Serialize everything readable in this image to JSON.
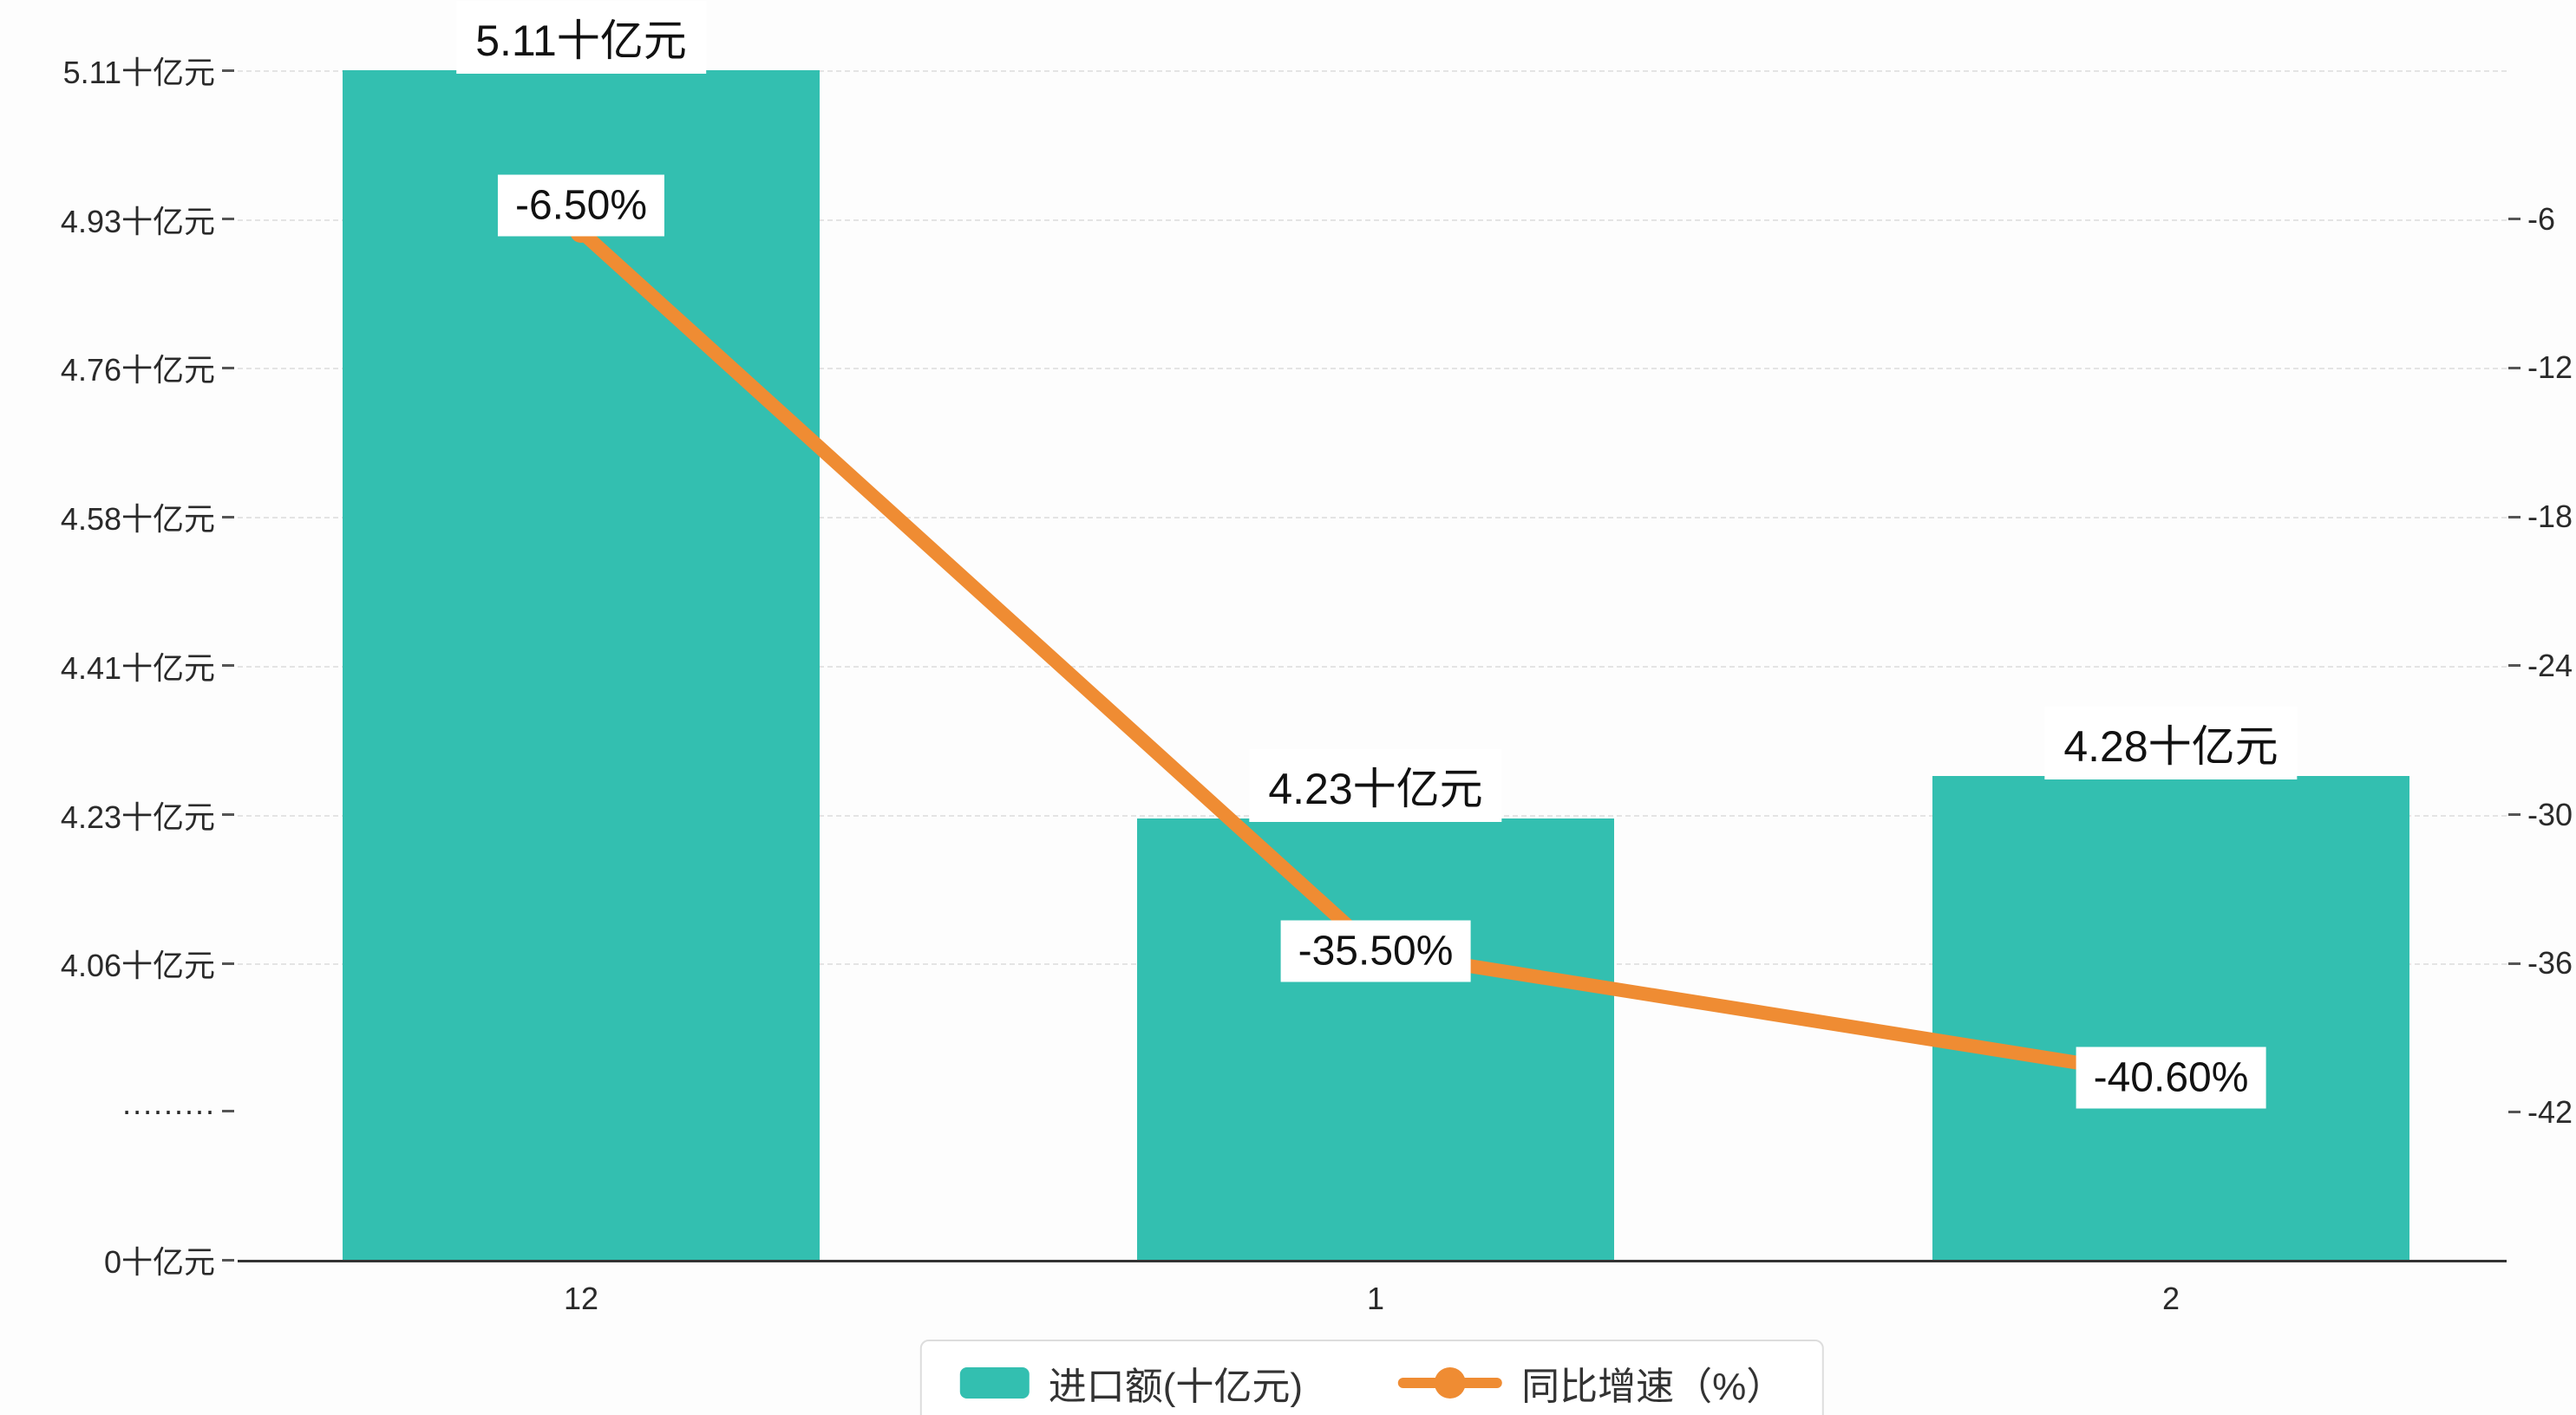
{
  "chart_data": {
    "type": "bar",
    "subtype": "bar-line-combo",
    "categories": [
      "12",
      "1",
      "2"
    ],
    "series": [
      {
        "name": "进口额(十亿元)",
        "type": "bar",
        "values": [
          5.11,
          4.23,
          4.28
        ],
        "data_labels": [
          "5.11十亿元",
          "4.23十亿元",
          "4.28十亿元"
        ],
        "color": "#33bfb0"
      },
      {
        "name": "同比增速（%）",
        "type": "line",
        "values": [
          -6.5,
          -35.5,
          -40.6
        ],
        "data_labels": [
          "-6.50%",
          "-35.50%",
          "-40.60%"
        ],
        "color": "#ef8c33"
      }
    ],
    "left_axis": {
      "unit": "十亿元",
      "axis_break": true,
      "ticks": [
        {
          "label": "5.11十亿元",
          "value": 5.11
        },
        {
          "label": "4.93十亿元",
          "value": 4.93
        },
        {
          "label": "4.76十亿元",
          "value": 4.76
        },
        {
          "label": "4.58十亿元",
          "value": 4.58
        },
        {
          "label": "4.41十亿元",
          "value": 4.41
        },
        {
          "label": "4.23十亿元",
          "value": 4.23
        },
        {
          "label": "4.06十亿元",
          "value": 4.06
        },
        {
          "label": "·········",
          "value": null
        },
        {
          "label": "0十亿元",
          "value": 0
        }
      ]
    },
    "right_axis": {
      "unit": "%",
      "ticks": [
        {
          "label": "-6",
          "value": -6
        },
        {
          "label": "-12",
          "value": -12
        },
        {
          "label": "-18",
          "value": -18
        },
        {
          "label": "-24",
          "value": -24
        },
        {
          "label": "-30",
          "value": -30
        },
        {
          "label": "-36",
          "value": -36
        },
        {
          "label": "-42",
          "value": -42
        }
      ]
    },
    "legend": [
      {
        "label": "进口额(十亿元)",
        "marker": "bar-swatch",
        "color": "#33bfb0"
      },
      {
        "label": "同比增速（%）",
        "marker": "line-dot-swatch",
        "color": "#ef8c33"
      }
    ],
    "grid": true,
    "legend_position": "bottom-center",
    "title": ""
  },
  "colors": {
    "bar": "#33bfb0",
    "line": "#ef8c33",
    "grid": "#e4e4e4",
    "axis": "#333333",
    "label_bg": "#ffffff",
    "text": "#1a1a1a",
    "background": "#fdfdfd"
  }
}
